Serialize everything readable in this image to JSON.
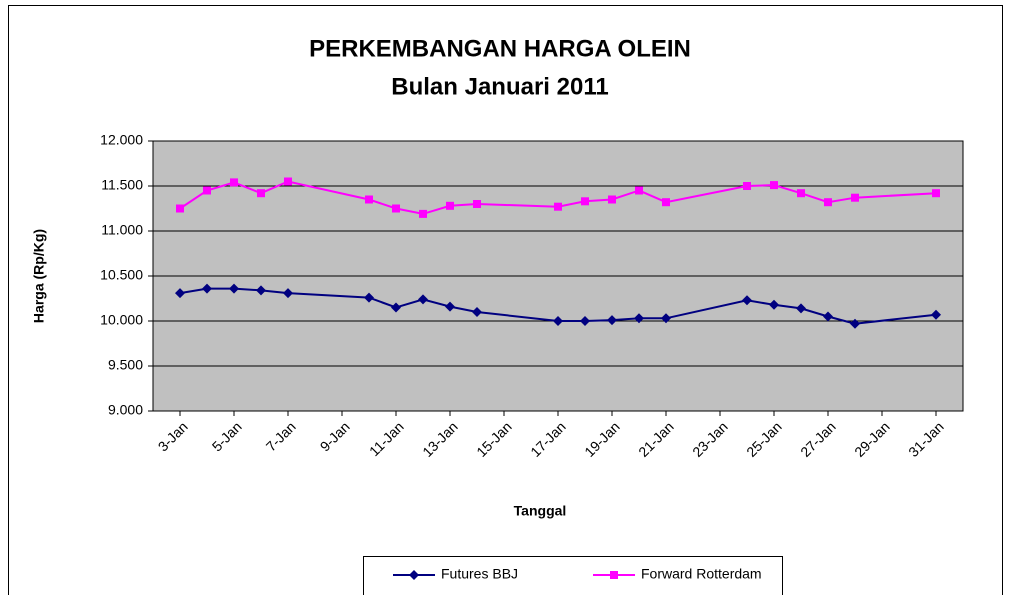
{
  "chart_data": {
    "type": "line",
    "title": "PERKEMBANGAN HARGA OLEIN",
    "subtitle": "Bulan Januari 2011",
    "xlabel": "Tanggal",
    "ylabel": "Harga (Rp/Kg)",
    "x": [
      3,
      4,
      5,
      6,
      7,
      10,
      11,
      12,
      13,
      14,
      17,
      18,
      19,
      20,
      21,
      24,
      25,
      26,
      27,
      28,
      31
    ],
    "series": [
      {
        "name": "Futures BBJ",
        "color": "#000080",
        "marker": "diamond",
        "values": [
          10310,
          10360,
          10360,
          10340,
          10310,
          10260,
          10150,
          10240,
          10160,
          10100,
          10000,
          10000,
          10010,
          10030,
          10030,
          10230,
          10180,
          10140,
          10050,
          9970,
          10070
        ]
      },
      {
        "name": "Forward Rotterdam",
        "color": "#ff00ff",
        "marker": "square",
        "values": [
          11250,
          11450,
          11540,
          11420,
          11550,
          11350,
          11250,
          11190,
          11280,
          11300,
          11270,
          11330,
          11350,
          11450,
          11320,
          11500,
          11510,
          11420,
          11320,
          11370,
          11420
        ]
      }
    ],
    "xlim": [
      2,
      32
    ],
    "xticks": [
      {
        "value": 3,
        "label": "3-Jan"
      },
      {
        "value": 5,
        "label": "5-Jan"
      },
      {
        "value": 7,
        "label": "7-Jan"
      },
      {
        "value": 9,
        "label": "9-Jan"
      },
      {
        "value": 11,
        "label": "11-Jan"
      },
      {
        "value": 13,
        "label": "13-Jan"
      },
      {
        "value": 15,
        "label": "15-Jan"
      },
      {
        "value": 17,
        "label": "17-Jan"
      },
      {
        "value": 19,
        "label": "19-Jan"
      },
      {
        "value": 21,
        "label": "21-Jan"
      },
      {
        "value": 23,
        "label": "23-Jan"
      },
      {
        "value": 25,
        "label": "25-Jan"
      },
      {
        "value": 27,
        "label": "27-Jan"
      },
      {
        "value": 29,
        "label": "29-Jan"
      },
      {
        "value": 31,
        "label": "31-Jan"
      }
    ],
    "ylim": [
      9000,
      12000
    ],
    "yticks": [
      {
        "value": 9000,
        "label": "9.000"
      },
      {
        "value": 9500,
        "label": "9.500"
      },
      {
        "value": 10000,
        "label": "10.000"
      },
      {
        "value": 10500,
        "label": "10.500"
      },
      {
        "value": 11000,
        "label": "11.000"
      },
      {
        "value": 11500,
        "label": "11.500"
      },
      {
        "value": 12000,
        "label": "12.000"
      }
    ],
    "grid": true,
    "plot_background": "#c0c0c0",
    "legend": "bottom"
  }
}
